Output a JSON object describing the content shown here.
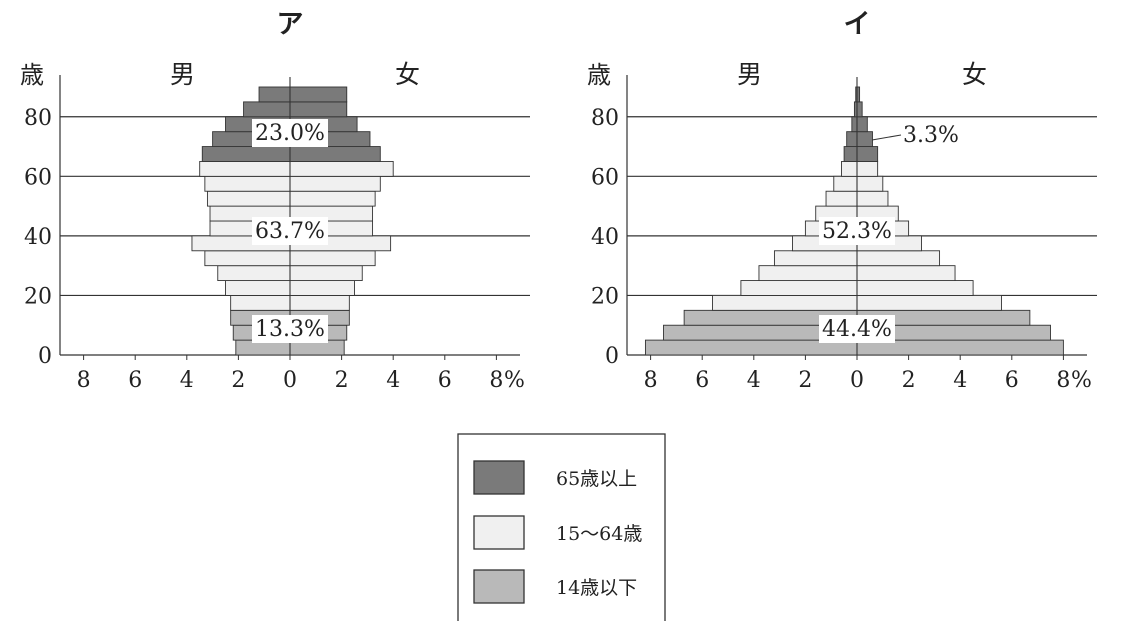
{
  "chart_data": [
    {
      "type": "bar",
      "title": "ア",
      "y_unit_label": "歳",
      "male_label": "男",
      "female_label": "女",
      "x_unit": "%",
      "x_ticks": [
        "8",
        "6",
        "4",
        "2",
        "0",
        "2",
        "4",
        "6",
        "8"
      ],
      "y_ticks": [
        "0",
        "20",
        "40",
        "60",
        "80"
      ],
      "gridlines": true,
      "age_groups": [
        "0-4",
        "5-9",
        "10-14",
        "15-19",
        "20-24",
        "25-29",
        "30-34",
        "35-39",
        "40-44",
        "45-49",
        "50-54",
        "55-59",
        "60-64",
        "65-69",
        "70-74",
        "75-79",
        "80-84",
        "85+"
      ],
      "series": [
        {
          "name": "男",
          "values": [
            2.1,
            2.2,
            2.3,
            2.3,
            2.5,
            2.8,
            3.3,
            3.8,
            3.1,
            3.1,
            3.2,
            3.3,
            3.5,
            3.4,
            3.0,
            2.5,
            1.8,
            1.2
          ]
        },
        {
          "name": "女",
          "values": [
            2.1,
            2.2,
            2.3,
            2.3,
            2.5,
            2.8,
            3.3,
            3.9,
            3.2,
            3.2,
            3.3,
            3.5,
            4.0,
            3.5,
            3.1,
            2.6,
            2.2,
            2.2
          ]
        }
      ],
      "band_starts": {
        "14歳以下": 0,
        "15〜64歳": 3,
        "65歳以上": 13
      },
      "annotations": [
        "23.0%",
        "63.7%",
        "13.3%"
      ]
    },
    {
      "type": "bar",
      "title": "イ",
      "y_unit_label": "歳",
      "male_label": "男",
      "female_label": "女",
      "x_unit": "%",
      "x_ticks": [
        "8",
        "6",
        "4",
        "2",
        "0",
        "2",
        "4",
        "6",
        "8"
      ],
      "y_ticks": [
        "0",
        "20",
        "40",
        "60",
        "80"
      ],
      "gridlines": true,
      "age_groups": [
        "0-4",
        "5-9",
        "10-14",
        "15-19",
        "20-24",
        "25-29",
        "30-34",
        "35-39",
        "40-44",
        "45-49",
        "50-54",
        "55-59",
        "60-64",
        "65-69",
        "70-74",
        "75-79",
        "80-84",
        "85+"
      ],
      "series": [
        {
          "name": "男",
          "values": [
            8.2,
            7.5,
            6.7,
            5.6,
            4.5,
            3.8,
            3.2,
            2.5,
            2.0,
            1.6,
            1.2,
            0.9,
            0.6,
            0.5,
            0.4,
            0.2,
            0.1,
            0.05
          ]
        },
        {
          "name": "女",
          "values": [
            8.0,
            7.5,
            6.7,
            5.6,
            4.5,
            3.8,
            3.2,
            2.5,
            2.0,
            1.6,
            1.2,
            1.0,
            0.8,
            0.8,
            0.6,
            0.4,
            0.2,
            0.1
          ]
        }
      ],
      "band_starts": {
        "14歳以下": 0,
        "15〜64歳": 3,
        "65歳以上": 13
      },
      "annotations": [
        "52.3%",
        "44.4%",
        "3.3%"
      ]
    }
  ],
  "legend": {
    "items": [
      {
        "label": "65歳以上",
        "color": "#7a7a7a"
      },
      {
        "label": "15〜64歳",
        "color": "#f0f0f0"
      },
      {
        "label": "14歳以下",
        "color": "#b9b9b9"
      }
    ]
  }
}
